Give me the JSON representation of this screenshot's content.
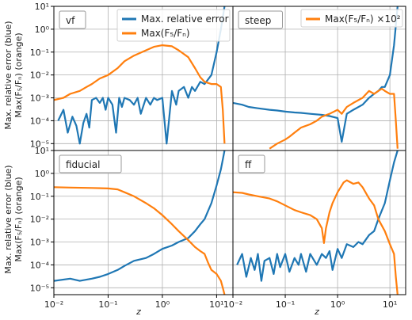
{
  "figure": {
    "ylabel_line1": "Max. relative error (blue)",
    "ylabel_line2": "Max(F₅/Fₙ) (orange)",
    "xlabel": "z"
  },
  "colors": {
    "blue": "#1f77b4",
    "orange": "#ff7f0e",
    "grid": "#b0b0b0",
    "frame": "#000000"
  },
  "chart_data": [
    {
      "type": "line",
      "panel": "vf",
      "legend_placement": "top-right",
      "xscale": "log",
      "yscale": "log",
      "xlim": [
        0.01,
        20
      ],
      "ylim": [
        5e-06,
        10
      ],
      "grid": true,
      "legend": [
        {
          "label": "Max. relative error",
          "color": "#1f77b4"
        },
        {
          "label": "Max(F₅/Fₙ)",
          "color": "#ff7f0e"
        }
      ],
      "series": [
        {
          "name": "Max. relative error",
          "color": "#1f77b4",
          "x": [
            0.012,
            0.015,
            0.018,
            0.022,
            0.026,
            0.03,
            0.035,
            0.04,
            0.045,
            0.05,
            0.06,
            0.07,
            0.08,
            0.09,
            0.1,
            0.12,
            0.14,
            0.16,
            0.18,
            0.2,
            0.25,
            0.3,
            0.35,
            0.4,
            0.5,
            0.6,
            0.7,
            0.8,
            1.0,
            1.2,
            1.5,
            1.8,
            2.0,
            2.5,
            3.0,
            3.5,
            4.0,
            5.0,
            6.0,
            8.0,
            10.0,
            12.0,
            14.0
          ],
          "y": [
            0.0001,
            0.0003,
            3e-05,
            0.00015,
            6e-05,
            1e-05,
            8e-05,
            0.0002,
            5e-05,
            0.0008,
            0.001,
            0.0006,
            0.001,
            0.0003,
            0.001,
            0.0005,
            3e-05,
            0.001,
            0.0004,
            0.001,
            0.0008,
            0.0005,
            0.001,
            0.0002,
            0.001,
            0.0005,
            0.001,
            0.0008,
            0.001,
            1e-05,
            0.002,
            0.0005,
            0.002,
            0.003,
            0.001,
            0.003,
            0.002,
            0.005,
            0.004,
            0.01,
            0.1,
            1,
            10
          ]
        },
        {
          "name": "Max(F₅/Fₙ)",
          "color": "#ff7f0e",
          "x": [
            0.01,
            0.015,
            0.02,
            0.03,
            0.04,
            0.05,
            0.07,
            0.1,
            0.15,
            0.2,
            0.3,
            0.5,
            0.7,
            1.0,
            1.5,
            2.0,
            3.0,
            4.0,
            5.0,
            6.0,
            8.0,
            10.0,
            12.0,
            13.0,
            14.0
          ],
          "y": [
            0.0008,
            0.001,
            0.0015,
            0.002,
            0.003,
            0.004,
            0.007,
            0.01,
            0.02,
            0.04,
            0.07,
            0.12,
            0.17,
            0.2,
            0.18,
            0.12,
            0.06,
            0.02,
            0.008,
            0.005,
            0.004,
            0.004,
            0.003,
            0.0003,
            1e-05
          ]
        }
      ]
    },
    {
      "type": "line",
      "panel": "steep",
      "legend_placement": "top-right",
      "xscale": "log",
      "yscale": "log",
      "xlim": [
        0.01,
        20
      ],
      "ylim": [
        5e-06,
        10
      ],
      "grid": true,
      "legend": [
        {
          "label": "Max(F₅/Fₙ) ×10²",
          "color": "#ff7f0e"
        }
      ],
      "series": [
        {
          "name": "Max. relative error",
          "color": "#1f77b4",
          "x": [
            0.01,
            0.015,
            0.02,
            0.03,
            0.05,
            0.07,
            0.1,
            0.15,
            0.2,
            0.3,
            0.5,
            0.7,
            1.0,
            1.2,
            1.5,
            2.0,
            3.0,
            4.0,
            5.0,
            6.0,
            7.0,
            8.0,
            10.0,
            12.0,
            14.0
          ],
          "y": [
            0.0006,
            0.0005,
            0.0004,
            0.00035,
            0.0003,
            0.00028,
            0.00025,
            0.00023,
            0.00022,
            0.0002,
            0.00018,
            0.00016,
            0.00013,
            1.2e-05,
            0.0002,
            0.0003,
            0.0005,
            0.001,
            0.0015,
            0.002,
            0.003,
            0.003,
            0.01,
            0.2,
            10
          ]
        },
        {
          "name": "Max(F₅/Fₙ) ×10²",
          "color": "#ff7f0e",
          "x": [
            0.05,
            0.07,
            0.1,
            0.12,
            0.15,
            0.2,
            0.3,
            0.4,
            0.5,
            0.7,
            1.0,
            1.2,
            1.5,
            2.0,
            3.0,
            4.0,
            5.0,
            6.0,
            7.0,
            8.0,
            10.0,
            12.0,
            13.0,
            14.0
          ],
          "y": [
            6e-06,
            1e-05,
            1.5e-05,
            2e-05,
            3e-05,
            5e-05,
            7e-05,
            0.0001,
            0.00015,
            0.0002,
            0.0003,
            0.0002,
            0.0004,
            0.0006,
            0.001,
            0.002,
            0.0015,
            0.002,
            0.0025,
            0.002,
            0.0015,
            0.0015,
            0.0001,
            6e-06
          ]
        }
      ]
    },
    {
      "type": "line",
      "panel": "fiducial",
      "legend_placement": "none",
      "xscale": "log",
      "yscale": "log",
      "xlim": [
        0.01,
        20
      ],
      "ylim": [
        5e-06,
        10
      ],
      "grid": true,
      "series": [
        {
          "name": "Max. relative error",
          "color": "#1f77b4",
          "x": [
            0.01,
            0.02,
            0.03,
            0.05,
            0.07,
            0.1,
            0.15,
            0.2,
            0.3,
            0.5,
            0.7,
            1.0,
            1.5,
            2.0,
            3.0,
            4.0,
            5.0,
            6.0,
            8.0,
            10.0,
            12.0,
            13.0,
            14.0
          ],
          "y": [
            2e-05,
            2.5e-05,
            2e-05,
            2.5e-05,
            3e-05,
            4e-05,
            6e-05,
            9e-05,
            0.00015,
            0.0002,
            0.0003,
            0.0005,
            0.0007,
            0.001,
            0.0015,
            0.003,
            0.006,
            0.01,
            0.05,
            0.3,
            1.5,
            4,
            10
          ]
        },
        {
          "name": "Max(F₅/Fₙ)",
          "color": "#ff7f0e",
          "x": [
            0.01,
            0.02,
            0.05,
            0.1,
            0.15,
            0.2,
            0.3,
            0.5,
            0.7,
            1.0,
            1.5,
            2.0,
            3.0,
            4.0,
            5.0,
            6.0,
            7.0,
            8.0,
            10.0,
            12.0,
            13.0,
            14.0
          ],
          "y": [
            0.25,
            0.24,
            0.23,
            0.22,
            0.2,
            0.15,
            0.1,
            0.05,
            0.03,
            0.015,
            0.006,
            0.003,
            0.0012,
            0.0006,
            0.0004,
            0.0003,
            0.00012,
            6e-05,
            4e-05,
            2e-05,
            1e-05,
            5e-06
          ]
        }
      ]
    },
    {
      "type": "line",
      "panel": "ff",
      "legend_placement": "none",
      "xscale": "log",
      "yscale": "log",
      "xlim": [
        0.01,
        20
      ],
      "ylim": [
        5e-06,
        10
      ],
      "grid": true,
      "series": [
        {
          "name": "Max. relative error",
          "color": "#1f77b4",
          "x": [
            0.012,
            0.015,
            0.018,
            0.022,
            0.026,
            0.03,
            0.035,
            0.04,
            0.05,
            0.06,
            0.07,
            0.08,
            0.1,
            0.12,
            0.15,
            0.18,
            0.2,
            0.25,
            0.3,
            0.4,
            0.5,
            0.6,
            0.7,
            0.8,
            1.0,
            1.2,
            1.5,
            2.0,
            2.5,
            3.0,
            4.0,
            5.0,
            6.0,
            8.0,
            10.0,
            12.0,
            14.0
          ],
          "y": [
            0.0001,
            0.0003,
            3e-05,
            0.0002,
            6e-05,
            0.0003,
            2e-05,
            0.00015,
            0.0002,
            4e-05,
            0.0003,
            8e-05,
            0.0003,
            5e-05,
            0.0002,
            0.0001,
            0.0003,
            5e-05,
            0.0003,
            0.0001,
            0.0003,
            0.0002,
            0.0004,
            6e-05,
            0.0005,
            0.0002,
            0.0008,
            0.0006,
            0.001,
            0.0008,
            0.002,
            0.003,
            0.01,
            0.05,
            0.5,
            3,
            10
          ]
        },
        {
          "name": "Max(F₅/Fₙ)",
          "color": "#ff7f0e",
          "x": [
            0.01,
            0.015,
            0.02,
            0.03,
            0.05,
            0.07,
            0.1,
            0.15,
            0.2,
            0.3,
            0.4,
            0.5,
            0.55,
            0.6,
            0.7,
            0.8,
            1.0,
            1.3,
            1.5,
            2.0,
            2.5,
            3.0,
            4.0,
            5.0,
            6.0,
            8.0,
            10.0,
            12.0,
            13.0,
            14.0
          ],
          "y": [
            0.15,
            0.14,
            0.12,
            0.1,
            0.08,
            0.06,
            0.04,
            0.025,
            0.02,
            0.015,
            0.01,
            0.004,
            0.0009,
            0.004,
            0.02,
            0.05,
            0.15,
            0.4,
            0.5,
            0.35,
            0.4,
            0.25,
            0.08,
            0.04,
            0.01,
            0.003,
            0.0008,
            0.0003,
            3e-05,
            5e-06
          ]
        }
      ]
    }
  ]
}
